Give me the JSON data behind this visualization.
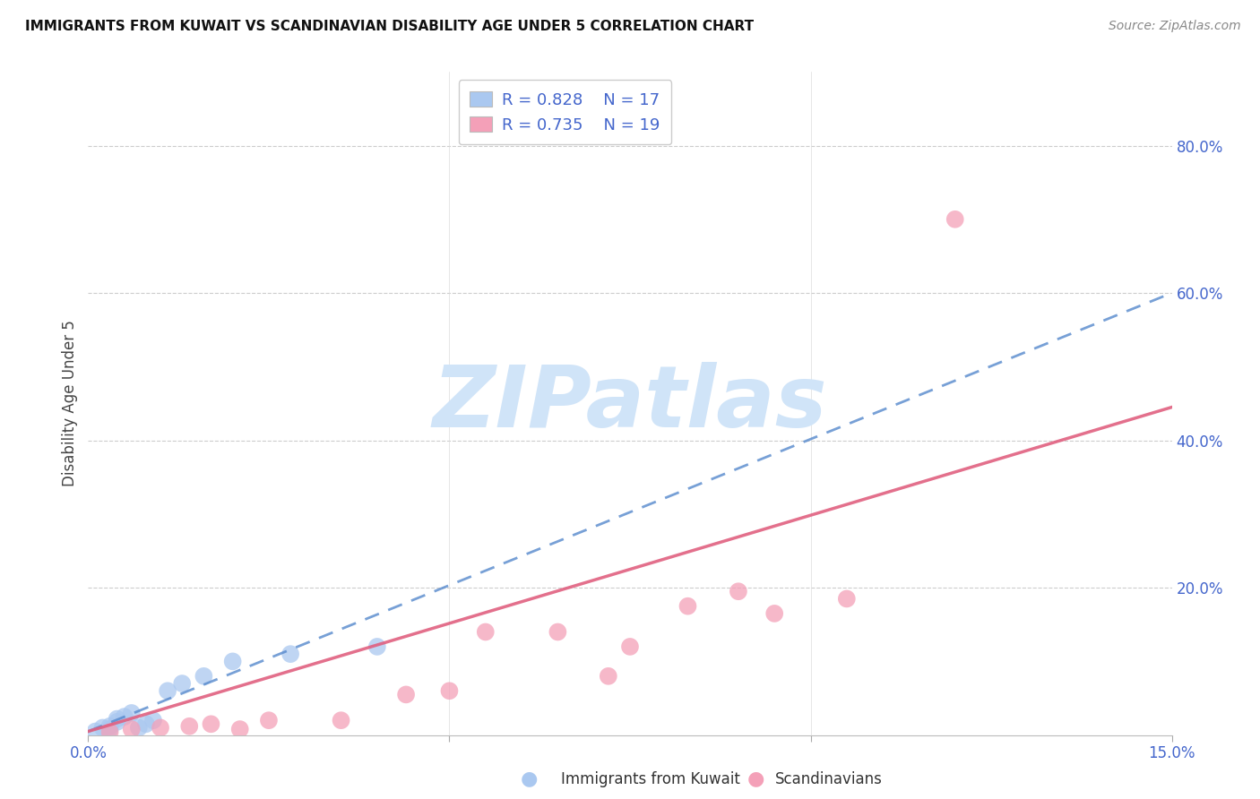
{
  "title": "IMMIGRANTS FROM KUWAIT VS SCANDINAVIAN DISABILITY AGE UNDER 5 CORRELATION CHART",
  "source": "Source: ZipAtlas.com",
  "ylabel": "Disability Age Under 5",
  "xlim": [
    0.0,
    0.15
  ],
  "ylim": [
    0.0,
    0.9
  ],
  "kuwait_R": 0.828,
  "kuwait_N": 17,
  "scand_R": 0.735,
  "scand_N": 19,
  "kuwait_color": "#aac8f0",
  "kuwait_line_color": "#5588cc",
  "kuwait_line_style": "--",
  "scand_color": "#f4a0b8",
  "scand_line_color": "#e06080",
  "scand_line_style": "-",
  "watermark_text": "ZIPatlas",
  "watermark_color": "#d0e4f8",
  "kuwait_points_x": [
    0.001,
    0.002,
    0.003,
    0.003,
    0.004,
    0.004,
    0.005,
    0.006,
    0.007,
    0.008,
    0.009,
    0.011,
    0.013,
    0.016,
    0.02,
    0.028,
    0.04
  ],
  "kuwait_points_y": [
    0.005,
    0.01,
    0.008,
    0.012,
    0.018,
    0.022,
    0.025,
    0.03,
    0.01,
    0.015,
    0.02,
    0.06,
    0.07,
    0.08,
    0.1,
    0.11,
    0.12
  ],
  "scand_points_x": [
    0.003,
    0.006,
    0.01,
    0.014,
    0.017,
    0.021,
    0.025,
    0.035,
    0.044,
    0.05,
    0.055,
    0.065,
    0.072,
    0.075,
    0.083,
    0.09,
    0.095,
    0.105,
    0.12
  ],
  "scand_points_y": [
    0.004,
    0.008,
    0.01,
    0.012,
    0.015,
    0.008,
    0.02,
    0.02,
    0.055,
    0.06,
    0.14,
    0.14,
    0.08,
    0.12,
    0.175,
    0.195,
    0.165,
    0.185,
    0.7
  ],
  "kuwait_line_x0": 0.0,
  "kuwait_line_y0": 0.005,
  "kuwait_line_x1": 0.15,
  "kuwait_line_y1": 0.6,
  "scand_line_x0": 0.0,
  "scand_line_y0": 0.005,
  "scand_line_x1": 0.15,
  "scand_line_y1": 0.445,
  "grid_color": "#cccccc",
  "grid_style": "--",
  "ytick_vals": [
    0.2,
    0.4,
    0.6,
    0.8
  ],
  "ytick_labels": [
    "20.0%",
    "40.0%",
    "60.0%",
    "80.0%"
  ],
  "xtick_vals": [
    0.0,
    0.05,
    0.1,
    0.15
  ],
  "xtick_labels": [
    "0.0%",
    "",
    "",
    "15.0%"
  ],
  "tick_color": "#4466cc",
  "title_fontsize": 11,
  "axis_fontsize": 12,
  "legend_fontsize": 13,
  "bottom_legend_items": [
    "Immigrants from Kuwait",
    "Scandinavians"
  ],
  "bottom_legend_colors": [
    "#aac8f0",
    "#f4a0b8"
  ]
}
